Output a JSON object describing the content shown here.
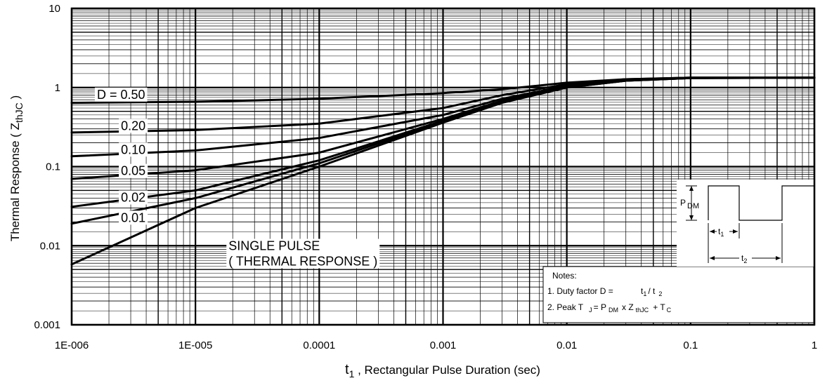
{
  "chart_data": {
    "type": "line",
    "scale": {
      "x": "log",
      "y": "log"
    },
    "xlim": [
      1e-06,
      1
    ],
    "ylim": [
      0.001,
      10
    ],
    "grid": true,
    "xlabel": {
      "main": "t",
      "sub": "1",
      "rest": " , Rectangular Pulse Duration (sec)"
    },
    "ylabel": {
      "main": "Thermal Response ( Z",
      "sub": "thJC",
      "rest": " )"
    },
    "x_ticks": [
      1e-06,
      1e-05,
      0.0001,
      0.001,
      0.01,
      0.1,
      1
    ],
    "x_tick_labels": [
      "1E-006",
      "1E-005",
      "0.0001",
      "0.001",
      "0.01",
      "0.1",
      "1"
    ],
    "y_ticks": [
      0.001,
      0.01,
      0.1,
      1,
      10
    ],
    "y_tick_labels": [
      "0.001",
      "0.01",
      "0.1",
      "1",
      "10"
    ],
    "series": [
      {
        "name": "D = 0.50",
        "label_text": "D = 0.50",
        "label_at": [
          1.6e-06,
          0.72
        ],
        "points": [
          [
            1e-06,
            0.64
          ],
          [
            1e-05,
            0.66
          ],
          [
            0.0001,
            0.72
          ],
          [
            0.001,
            0.85
          ],
          [
            0.003,
            0.95
          ],
          [
            0.01,
            1.15
          ],
          [
            0.03,
            1.27
          ],
          [
            0.1,
            1.33
          ],
          [
            1,
            1.33
          ]
        ]
      },
      {
        "name": "0.20",
        "label_text": "0.20",
        "label_at": [
          2.5e-06,
          0.29
        ],
        "points": [
          [
            1e-06,
            0.27
          ],
          [
            1e-05,
            0.29
          ],
          [
            0.0001,
            0.35
          ],
          [
            0.001,
            0.55
          ],
          [
            0.003,
            0.8
          ],
          [
            0.01,
            1.1
          ],
          [
            0.03,
            1.27
          ],
          [
            0.1,
            1.33
          ],
          [
            1,
            1.33
          ]
        ]
      },
      {
        "name": "0.10",
        "label_text": "0.10",
        "label_at": [
          2.5e-06,
          0.145
        ],
        "points": [
          [
            1e-06,
            0.135
          ],
          [
            1e-05,
            0.16
          ],
          [
            0.0001,
            0.23
          ],
          [
            0.001,
            0.45
          ],
          [
            0.003,
            0.72
          ],
          [
            0.01,
            1.05
          ],
          [
            0.03,
            1.25
          ],
          [
            0.1,
            1.33
          ],
          [
            1,
            1.33
          ]
        ]
      },
      {
        "name": "0.05",
        "label_text": "0.05",
        "label_at": [
          2.5e-06,
          0.078
        ],
        "points": [
          [
            1e-06,
            0.07
          ],
          [
            1e-05,
            0.09
          ],
          [
            0.0001,
            0.15
          ],
          [
            0.001,
            0.4
          ],
          [
            0.003,
            0.68
          ],
          [
            0.01,
            1.02
          ],
          [
            0.03,
            1.23
          ],
          [
            0.1,
            1.32
          ],
          [
            1,
            1.33
          ]
        ]
      },
      {
        "name": "0.02",
        "label_text": "0.02",
        "label_at": [
          2.5e-06,
          0.036
        ],
        "points": [
          [
            1e-06,
            0.031
          ],
          [
            1e-05,
            0.05
          ],
          [
            0.0001,
            0.12
          ],
          [
            0.001,
            0.38
          ],
          [
            0.003,
            0.66
          ],
          [
            0.01,
            1.01
          ],
          [
            0.03,
            1.22
          ],
          [
            0.1,
            1.32
          ],
          [
            1,
            1.33
          ]
        ]
      },
      {
        "name": "0.01",
        "label_text": "0.01",
        "label_at": [
          2.5e-06,
          0.02
        ],
        "points": [
          [
            1e-06,
            0.019
          ],
          [
            1e-05,
            0.04
          ],
          [
            0.0001,
            0.11
          ],
          [
            0.001,
            0.37
          ],
          [
            0.003,
            0.65
          ],
          [
            0.01,
            1.0
          ],
          [
            0.03,
            1.22
          ],
          [
            0.1,
            1.32
          ],
          [
            1,
            1.33
          ]
        ]
      },
      {
        "name": "SINGLE PULSE",
        "label_lines": [
          "SINGLE PULSE",
          "( THERMAL RESPONSE )"
        ],
        "label_at": [
          1.85e-05,
          0.0088
        ],
        "points": [
          [
            1e-06,
            0.0058
          ],
          [
            1e-05,
            0.03
          ],
          [
            0.0001,
            0.1
          ],
          [
            0.001,
            0.36
          ],
          [
            0.003,
            0.64
          ],
          [
            0.01,
            1.0
          ],
          [
            0.03,
            1.22
          ],
          [
            0.1,
            1.32
          ],
          [
            1,
            1.33
          ]
        ]
      }
    ],
    "notes": {
      "title": "Notes:",
      "line1": {
        "a": "1. Duty factor D =",
        "b": "t",
        "b_sub": "1",
        "c": "/ t",
        "c_sub": "2"
      },
      "line2": {
        "a": "2. Peak T",
        "a_sub": "J",
        "b": "= P",
        "b_sub": "DM",
        "c": "x Z",
        "c_sub": "thJC",
        "d": "+ T",
        "d_sub": "C"
      }
    },
    "inset": {
      "pdm": "P",
      "pdm_sub": "DM",
      "t1": "t",
      "t1_sub": "1",
      "t2": "t",
      "t2_sub": "2"
    },
    "colors": {
      "line": "#000000",
      "grid": "#000000",
      "background": "#ffffff"
    }
  }
}
